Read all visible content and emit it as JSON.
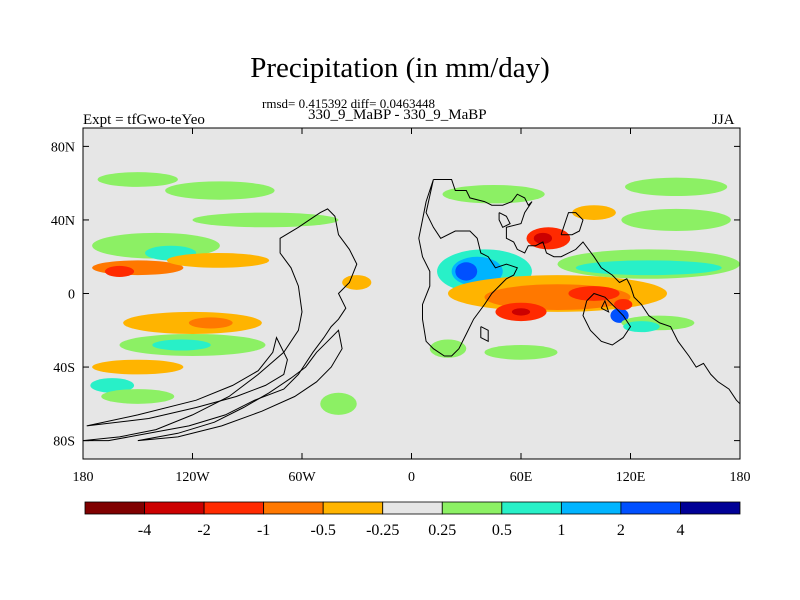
{
  "chart_data": {
    "type": "heatmap",
    "title": "Precipitation (in mm/day)",
    "stats_line": "rmsd= 0.415392 diff= 0.0463448",
    "subtitle": "330_9_MaBP - 330_9_MaBP",
    "left_label": "Expt = tfGwo-teYeo",
    "right_label": "JJA",
    "x_range": [
      -180,
      180
    ],
    "y_range": [
      -90,
      90
    ],
    "x_ticks": [
      {
        "value": -180,
        "label": "180"
      },
      {
        "value": -120,
        "label": "120W"
      },
      {
        "value": -60,
        "label": "60W"
      },
      {
        "value": 0,
        "label": "0"
      },
      {
        "value": 60,
        "label": "60E"
      },
      {
        "value": 120,
        "label": "120E"
      },
      {
        "value": 180,
        "label": "180"
      }
    ],
    "y_ticks": [
      {
        "value": 80,
        "label": "80N"
      },
      {
        "value": 40,
        "label": "40N"
      },
      {
        "value": 0,
        "label": "0"
      },
      {
        "value": -40,
        "label": "40S"
      },
      {
        "value": -80,
        "label": "80S"
      }
    ],
    "background_color": "#e6e6e6",
    "colorbar": {
      "colors": [
        "#800000",
        "#cc0000",
        "#ff2a00",
        "#ff7800",
        "#ffb400",
        "#e6e6e6",
        "#8cf064",
        "#28f0c8",
        "#00b4ff",
        "#0050ff",
        "#000096"
      ],
      "labels": [
        "-4",
        "-2",
        "-1",
        "-0.5",
        "-0.25",
        "0.25",
        "0.5",
        "1",
        "2",
        "4"
      ]
    },
    "continents": [
      {
        "name": "continent-outline-afro-eurasia",
        "points": [
          [
            12,
            62
          ],
          [
            22,
            62
          ],
          [
            24,
            56
          ],
          [
            30,
            56
          ],
          [
            32,
            52
          ],
          [
            40,
            50
          ],
          [
            44,
            48
          ],
          [
            50,
            48
          ],
          [
            55,
            50
          ],
          [
            58,
            54
          ],
          [
            62,
            52
          ],
          [
            64,
            48
          ],
          [
            66,
            50
          ],
          [
            62,
            44
          ],
          [
            60,
            38
          ],
          [
            52,
            36
          ],
          [
            52,
            30
          ],
          [
            56,
            28
          ],
          [
            58,
            24
          ],
          [
            62,
            22
          ],
          [
            64,
            26
          ],
          [
            68,
            26
          ],
          [
            72,
            28
          ],
          [
            74,
            22
          ],
          [
            78,
            20
          ],
          [
            82,
            20
          ],
          [
            90,
            24
          ],
          [
            94,
            28
          ],
          [
            100,
            20
          ],
          [
            104,
            14
          ],
          [
            110,
            10
          ],
          [
            114,
            6
          ],
          [
            118,
            8
          ],
          [
            120,
            4
          ],
          [
            122,
            -2
          ],
          [
            126,
            -6
          ],
          [
            130,
            -12
          ],
          [
            136,
            -16
          ],
          [
            142,
            -18
          ],
          [
            146,
            -26
          ],
          [
            152,
            -34
          ],
          [
            156,
            -40
          ],
          [
            160,
            -38
          ],
          [
            164,
            -44
          ],
          [
            168,
            -48
          ],
          [
            174,
            -52
          ],
          [
            178,
            -58
          ],
          [
            180,
            -60
          ]
        ]
      },
      {
        "name": "continent-outline-africa-south",
        "points": [
          [
            12,
            62
          ],
          [
            8,
            50
          ],
          [
            6,
            40
          ],
          [
            4,
            30
          ],
          [
            6,
            20
          ],
          [
            10,
            12
          ],
          [
            10,
            4
          ],
          [
            6,
            -6
          ],
          [
            6,
            -14
          ],
          [
            8,
            -26
          ],
          [
            12,
            -30
          ],
          [
            18,
            -34
          ],
          [
            22,
            -34
          ],
          [
            26,
            -30
          ],
          [
            30,
            -22
          ],
          [
            34,
            -14
          ],
          [
            40,
            -6
          ],
          [
            44,
            0
          ],
          [
            48,
            4
          ],
          [
            52,
            8
          ],
          [
            56,
            10
          ],
          [
            58,
            14
          ],
          [
            52,
            16
          ],
          [
            46,
            14
          ],
          [
            42,
            20
          ],
          [
            38,
            22
          ],
          [
            36,
            30
          ],
          [
            32,
            34
          ],
          [
            24,
            34
          ],
          [
            16,
            30
          ],
          [
            12,
            36
          ],
          [
            8,
            44
          ],
          [
            12,
            62
          ]
        ]
      },
      {
        "name": "continent-outline-australia",
        "points": [
          [
            96,
            -4
          ],
          [
            100,
            0
          ],
          [
            106,
            -2
          ],
          [
            112,
            -8
          ],
          [
            116,
            -12
          ],
          [
            120,
            -18
          ],
          [
            116,
            -24
          ],
          [
            110,
            -28
          ],
          [
            104,
            -26
          ],
          [
            98,
            -20
          ],
          [
            94,
            -12
          ],
          [
            96,
            -4
          ]
        ]
      },
      {
        "name": "continent-outline-madagascar",
        "points": [
          [
            38,
            -18
          ],
          [
            42,
            -20
          ],
          [
            42,
            -26
          ],
          [
            38,
            -24
          ],
          [
            38,
            -18
          ]
        ]
      },
      {
        "name": "continent-outline-americas",
        "points": [
          [
            -180,
            -80
          ],
          [
            -160,
            -78
          ],
          [
            -140,
            -74
          ],
          [
            -120,
            -66
          ],
          [
            -100,
            -56
          ],
          [
            -84,
            -44
          ],
          [
            -70,
            -32
          ],
          [
            -62,
            -20
          ],
          [
            -60,
            -10
          ],
          [
            -62,
            4
          ],
          [
            -66,
            14
          ],
          [
            -72,
            22
          ],
          [
            -72,
            30
          ],
          [
            -62,
            36
          ],
          [
            -56,
            40
          ],
          [
            -50,
            44
          ],
          [
            -46,
            46
          ],
          [
            -42,
            42
          ],
          [
            -40,
            32
          ],
          [
            -34,
            24
          ],
          [
            -30,
            16
          ],
          [
            -34,
            6
          ],
          [
            -40,
            0
          ],
          [
            -36,
            -8
          ],
          [
            -40,
            -14
          ],
          [
            -44,
            -18
          ],
          [
            -48,
            -24
          ],
          [
            -54,
            -32
          ],
          [
            -58,
            -38
          ],
          [
            -62,
            -44
          ],
          [
            -70,
            -52
          ],
          [
            -86,
            -58
          ],
          [
            -102,
            -66
          ],
          [
            -122,
            -72
          ],
          [
            -144,
            -76
          ],
          [
            -166,
            -80
          ],
          [
            -180,
            -80
          ]
        ]
      },
      {
        "name": "continent-outline-americas-inner",
        "points": [
          [
            -150,
            -80
          ],
          [
            -128,
            -76
          ],
          [
            -108,
            -70
          ],
          [
            -92,
            -62
          ],
          [
            -78,
            -54
          ],
          [
            -66,
            -46
          ],
          [
            -58,
            -40
          ],
          [
            -52,
            -32
          ],
          [
            -46,
            -26
          ],
          [
            -40,
            -20
          ],
          [
            -38,
            -30
          ],
          [
            -44,
            -40
          ],
          [
            -52,
            -48
          ],
          [
            -64,
            -56
          ],
          [
            -82,
            -64
          ],
          [
            -104,
            -72
          ],
          [
            -128,
            -78
          ],
          [
            -150,
            -80
          ]
        ]
      },
      {
        "name": "continent-outline-greenland-west",
        "points": [
          [
            -178,
            -72
          ],
          [
            -150,
            -66
          ],
          [
            -118,
            -58
          ],
          [
            -98,
            -50
          ],
          [
            -84,
            -42
          ],
          [
            -76,
            -32
          ],
          [
            -74,
            -24
          ],
          [
            -68,
            -36
          ],
          [
            -70,
            -44
          ],
          [
            -80,
            -50
          ],
          [
            -96,
            -56
          ],
          [
            -118,
            -62
          ],
          [
            -144,
            -68
          ],
          [
            -178,
            -72
          ]
        ]
      },
      {
        "name": "continent-outline-europe-islands",
        "points": [
          [
            48,
            44
          ],
          [
            52,
            42
          ],
          [
            54,
            38
          ],
          [
            50,
            36
          ],
          [
            48,
            40
          ],
          [
            48,
            44
          ]
        ]
      },
      {
        "name": "continent-outline-east-asia",
        "points": [
          [
            82,
            32
          ],
          [
            84,
            38
          ],
          [
            86,
            44
          ],
          [
            90,
            44
          ],
          [
            94,
            40
          ],
          [
            92,
            34
          ],
          [
            88,
            32
          ],
          [
            82,
            32
          ]
        ]
      },
      {
        "name": "continent-outline-se-islands",
        "points": [
          [
            104,
            -8
          ],
          [
            106,
            -4
          ],
          [
            108,
            -10
          ],
          [
            104,
            -8
          ]
        ]
      }
    ],
    "precip_patches": [
      {
        "name": "patch-na-north",
        "lon": -150,
        "lat": 62,
        "rx": 22,
        "ry": 4,
        "color": "#8cf064"
      },
      {
        "name": "patch-na-north-2",
        "lon": -105,
        "lat": 56,
        "rx": 30,
        "ry": 5,
        "color": "#8cf064"
      },
      {
        "name": "patch-na-mid",
        "lon": -80,
        "lat": 40,
        "rx": 40,
        "ry": 4,
        "color": "#8cf064"
      },
      {
        "name": "patch-pac-n-green",
        "lon": -140,
        "lat": 26,
        "rx": 35,
        "ry": 7,
        "color": "#8cf064"
      },
      {
        "name": "patch-pac-n-cyan",
        "lon": -132,
        "lat": 22,
        "rx": 14,
        "ry": 4,
        "color": "#28f0c8"
      },
      {
        "name": "patch-pac-n-orange",
        "lon": -150,
        "lat": 14,
        "rx": 25,
        "ry": 4,
        "color": "#ff7800"
      },
      {
        "name": "patch-pac-n-orange-2",
        "lon": -106,
        "lat": 18,
        "rx": 28,
        "ry": 4,
        "color": "#ffb400"
      },
      {
        "name": "patch-pac-n-red",
        "lon": -160,
        "lat": 12,
        "rx": 8,
        "ry": 3,
        "color": "#ff2a00"
      },
      {
        "name": "patch-pac-eq-orange",
        "lon": -120,
        "lat": -16,
        "rx": 38,
        "ry": 6,
        "color": "#ffb400"
      },
      {
        "name": "patch-pac-eq-red",
        "lon": -110,
        "lat": -16,
        "rx": 12,
        "ry": 3,
        "color": "#ff7800"
      },
      {
        "name": "patch-pac-s-green",
        "lon": -120,
        "lat": -28,
        "rx": 40,
        "ry": 6,
        "color": "#8cf064"
      },
      {
        "name": "patch-pac-s-cyan",
        "lon": -126,
        "lat": -28,
        "rx": 16,
        "ry": 3,
        "color": "#28f0c8"
      },
      {
        "name": "patch-pac-s-orange",
        "lon": -150,
        "lat": -40,
        "rx": 25,
        "ry": 4,
        "color": "#ffb400"
      },
      {
        "name": "patch-sa-cyan",
        "lon": -164,
        "lat": -50,
        "rx": 12,
        "ry": 4,
        "color": "#28f0c8"
      },
      {
        "name": "patch-sa-green",
        "lon": -150,
        "lat": -56,
        "rx": 20,
        "ry": 4,
        "color": "#8cf064"
      },
      {
        "name": "patch-atl-green",
        "lon": -40,
        "lat": -60,
        "rx": 10,
        "ry": 6,
        "color": "#8cf064"
      },
      {
        "name": "patch-atl-n-orange",
        "lon": -30,
        "lat": 6,
        "rx": 8,
        "ry": 4,
        "color": "#ffb400"
      },
      {
        "name": "patch-eu-green",
        "lon": 45,
        "lat": 54,
        "rx": 28,
        "ry": 5,
        "color": "#8cf064"
      },
      {
        "name": "patch-eu-orange",
        "lon": 100,
        "lat": 44,
        "rx": 12,
        "ry": 4,
        "color": "#ffb400"
      },
      {
        "name": "patch-asia-green",
        "lon": 145,
        "lat": 58,
        "rx": 28,
        "ry": 5,
        "color": "#8cf064"
      },
      {
        "name": "patch-asia-n-green",
        "lon": 145,
        "lat": 40,
        "rx": 30,
        "ry": 6,
        "color": "#8cf064"
      },
      {
        "name": "patch-asia-red",
        "lon": 75,
        "lat": 30,
        "rx": 12,
        "ry": 6,
        "color": "#ff2a00"
      },
      {
        "name": "patch-asia-dred",
        "lon": 72,
        "lat": 30,
        "rx": 5,
        "ry": 3,
        "color": "#cc0000"
      },
      {
        "name": "patch-monsoon-cyan",
        "lon": 40,
        "lat": 12,
        "rx": 26,
        "ry": 12,
        "color": "#28f0c8"
      },
      {
        "name": "patch-monsoon-blue",
        "lon": 36,
        "lat": 12,
        "rx": 14,
        "ry": 8,
        "color": "#00b4ff"
      },
      {
        "name": "patch-monsoon-dblue",
        "lon": 30,
        "lat": 12,
        "rx": 6,
        "ry": 5,
        "color": "#0050ff"
      },
      {
        "name": "patch-indpac-green",
        "lon": 130,
        "lat": 16,
        "rx": 50,
        "ry": 8,
        "color": "#8cf064"
      },
      {
        "name": "patch-indpac-cyan",
        "lon": 130,
        "lat": 14,
        "rx": 40,
        "ry": 4,
        "color": "#28f0c8"
      },
      {
        "name": "patch-eq-orange",
        "lon": 80,
        "lat": 0,
        "rx": 60,
        "ry": 10,
        "color": "#ffb400"
      },
      {
        "name": "patch-eq-dorange",
        "lon": 80,
        "lat": -2,
        "rx": 40,
        "ry": 7,
        "color": "#ff7800"
      },
      {
        "name": "patch-eq-red",
        "lon": 60,
        "lat": -10,
        "rx": 14,
        "ry": 5,
        "color": "#ff2a00"
      },
      {
        "name": "patch-eq-red-2",
        "lon": 100,
        "lat": 0,
        "rx": 14,
        "ry": 4,
        "color": "#ff2a00"
      },
      {
        "name": "patch-eq-dred",
        "lon": 60,
        "lat": -10,
        "rx": 5,
        "ry": 2,
        "color": "#cc0000"
      },
      {
        "name": "patch-aus-blue",
        "lon": 114,
        "lat": -12,
        "rx": 5,
        "ry": 4,
        "color": "#0050ff"
      },
      {
        "name": "patch-aus-red",
        "lon": 116,
        "lat": -6,
        "rx": 5,
        "ry": 3,
        "color": "#ff2a00"
      },
      {
        "name": "patch-s-ocean-green",
        "lon": 60,
        "lat": -32,
        "rx": 20,
        "ry": 4,
        "color": "#8cf064"
      },
      {
        "name": "patch-s-ocean-green-2",
        "lon": 135,
        "lat": -16,
        "rx": 20,
        "ry": 4,
        "color": "#8cf064"
      },
      {
        "name": "patch-s-ocean-green-3",
        "lon": 20,
        "lat": -30,
        "rx": 10,
        "ry": 5,
        "color": "#8cf064"
      },
      {
        "name": "patch-s-ocean-cyan",
        "lon": 126,
        "lat": -18,
        "rx": 10,
        "ry": 3,
        "color": "#28f0c8"
      }
    ]
  }
}
